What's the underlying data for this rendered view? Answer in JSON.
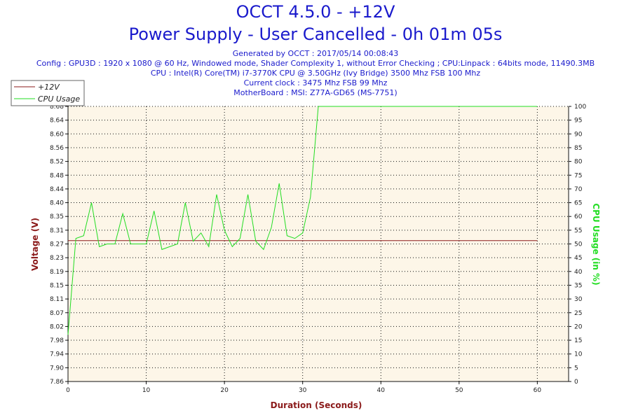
{
  "header": {
    "title": "OCCT 4.5.0 - +12V",
    "subtitle": "Power Supply - User Cancelled - 0h 01m 05s",
    "info": [
      "Generated by OCCT : 2017/05/14 00:08:43",
      "Config : GPU3D : 1920 x 1080 @ 60 Hz, Windowed mode, Shader Complexity 1, without Error Checking ; CPU:Linpack : 64bits mode, 11490.3MB",
      "CPU : Intel(R) Core(TM) i7-3770K CPU @ 3.50GHz (Ivy Bridge) 3500 Mhz FSB 100 Mhz",
      "Current clock : 3475 Mhz FSB 99 Mhz",
      "MotherBoard : MSI: Z77A-GD65 (MS-7751)"
    ]
  },
  "colors": {
    "voltage": "#8b1a1a",
    "cpu": "#22dd22",
    "plot_bg": "#fdf6e8",
    "title": "#1a1acc"
  },
  "chart_data": {
    "type": "line",
    "xlabel": "Duration (Seconds)",
    "ylabel_left": "Voltage (V)",
    "ylabel_right": "CPU Usage (in %)",
    "xlim": [
      0,
      64
    ],
    "ylim_left": [
      7.86,
      8.68
    ],
    "ylim_right": [
      0,
      100
    ],
    "x_ticks": [
      0,
      10,
      20,
      30,
      40,
      50,
      60
    ],
    "y_left_ticks": [
      "7.86",
      "7.90",
      "7.94",
      "7.98",
      "8.02",
      "8.07",
      "8.11",
      "8.15",
      "8.19",
      "8.23",
      "8.27",
      "8.31",
      "8.35",
      "8.40",
      "8.44",
      "8.48",
      "8.52",
      "8.56",
      "8.60",
      "8.64",
      "8.68"
    ],
    "y_right_ticks": [
      0,
      5,
      10,
      15,
      20,
      25,
      30,
      35,
      40,
      45,
      50,
      55,
      60,
      65,
      70,
      75,
      80,
      85,
      90,
      95,
      100
    ],
    "grid": "dotted",
    "legend_placement": "top-left",
    "series": [
      {
        "name": "+12V",
        "axis": "left",
        "x": [
          0,
          60
        ],
        "y": [
          8.28,
          8.28
        ]
      },
      {
        "name": "CPU Usage",
        "axis": "right",
        "x": [
          0,
          1,
          2,
          3,
          4,
          5,
          6,
          7,
          8,
          9,
          10,
          11,
          12,
          13,
          14,
          15,
          16,
          17,
          18,
          19,
          20,
          21,
          22,
          23,
          24,
          25,
          26,
          27,
          28,
          29,
          30,
          31,
          32,
          33,
          40,
          50,
          60
        ],
        "y": [
          17,
          52,
          53,
          65,
          49,
          50,
          50,
          61,
          50,
          50,
          50,
          62,
          48,
          49,
          50,
          65,
          51,
          54,
          49,
          68,
          55,
          49,
          52,
          68,
          51,
          48,
          56,
          72,
          53,
          52,
          54,
          67,
          100,
          100,
          100,
          100,
          100
        ]
      }
    ]
  }
}
